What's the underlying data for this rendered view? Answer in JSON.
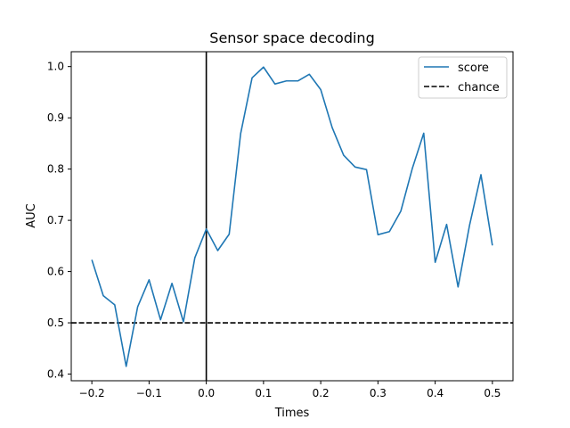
{
  "chart_data": {
    "type": "line",
    "title": "Sensor space decoding",
    "xlabel": "Times",
    "ylabel": "AUC",
    "xlim": [
      -0.236,
      0.536
    ],
    "ylim": [
      0.387,
      1.029
    ],
    "xticks": [
      -0.2,
      -0.1,
      0.0,
      0.1,
      0.2,
      0.3,
      0.4,
      0.5
    ],
    "xtick_labels": [
      "−0.2",
      "−0.1",
      "0.0",
      "0.1",
      "0.2",
      "0.3",
      "0.4",
      "0.5"
    ],
    "yticks": [
      0.4,
      0.5,
      0.6,
      0.7,
      0.8,
      0.9,
      1.0
    ],
    "ytick_labels": [
      "0.4",
      "0.5",
      "0.6",
      "0.7",
      "0.8",
      "0.9",
      "1.0"
    ],
    "grid": false,
    "legend_position": "top-right",
    "series": [
      {
        "name": "score",
        "color": "#1f77b4",
        "style": "solid",
        "x": [
          -0.2,
          -0.18,
          -0.16,
          -0.14,
          -0.12,
          -0.1,
          -0.08,
          -0.06,
          -0.04,
          -0.02,
          0.0,
          0.02,
          0.04,
          0.06,
          0.08,
          0.1,
          0.12,
          0.14,
          0.16,
          0.18,
          0.2,
          0.22,
          0.24,
          0.26,
          0.28,
          0.3,
          0.32,
          0.34,
          0.36,
          0.38,
          0.4,
          0.42,
          0.44,
          0.46,
          0.48,
          0.5
        ],
        "y": [
          0.623,
          0.553,
          0.535,
          0.415,
          0.531,
          0.584,
          0.506,
          0.577,
          0.502,
          0.627,
          0.683,
          0.641,
          0.673,
          0.869,
          0.978,
          0.999,
          0.966,
          0.972,
          0.972,
          0.985,
          0.955,
          0.881,
          0.827,
          0.804,
          0.799,
          0.672,
          0.678,
          0.718,
          0.801,
          0.87,
          0.618,
          0.692,
          0.57,
          0.69,
          0.789,
          0.651
        ]
      },
      {
        "name": "chance",
        "color": "#000000",
        "style": "dashed",
        "hline": 0.5
      }
    ],
    "vline": {
      "x": 0.0,
      "color": "#000000"
    }
  }
}
